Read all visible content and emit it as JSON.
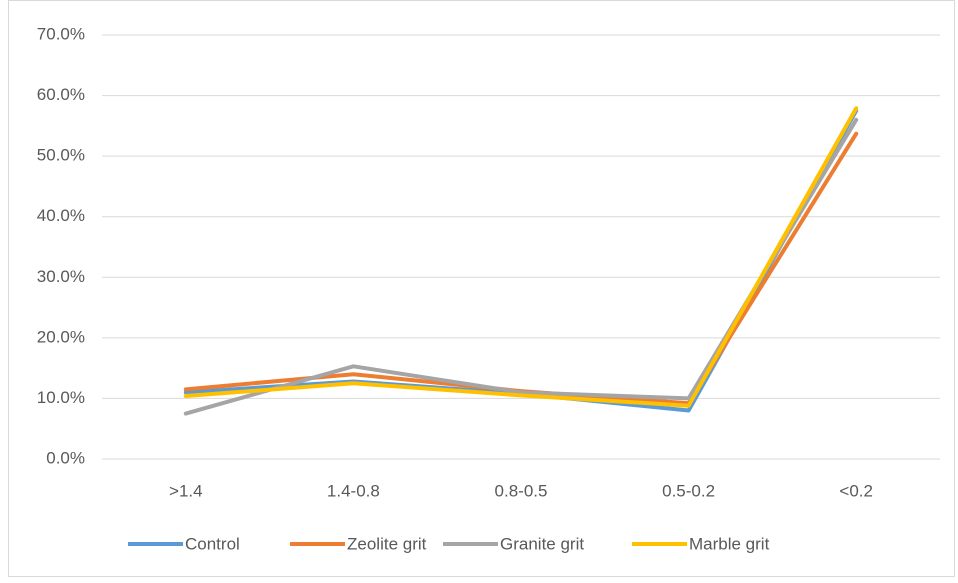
{
  "chart_data": {
    "type": "line",
    "categories": [
      ">1.4",
      "1.4-0.8",
      "0.8-0.5",
      "0.5-0.2",
      "<0.2"
    ],
    "series": [
      {
        "name": "Control",
        "color": "#5b9bd5",
        "values": [
          11.0,
          12.8,
          10.8,
          8.0,
          57.5
        ]
      },
      {
        "name": "Zeolite grit",
        "color": "#ed7d31",
        "values": [
          11.5,
          14.0,
          11.2,
          9.2,
          53.7
        ]
      },
      {
        "name": "Granite grit",
        "color": "#a5a5a5",
        "values": [
          7.5,
          15.3,
          11.0,
          10.0,
          56.0
        ]
      },
      {
        "name": "Marble grit",
        "color": "#ffc000",
        "values": [
          10.4,
          12.5,
          10.5,
          8.8,
          57.9
        ]
      }
    ],
    "ylim": [
      0,
      70
    ],
    "yticks": [
      {
        "value": 0,
        "label": "0.0%"
      },
      {
        "value": 10,
        "label": "10.0%"
      },
      {
        "value": 20,
        "label": "20.0%"
      },
      {
        "value": 30,
        "label": "30.0%"
      },
      {
        "value": 40,
        "label": "40.0%"
      },
      {
        "value": 50,
        "label": "50.0%"
      },
      {
        "value": 60,
        "label": "60.0%"
      },
      {
        "value": 70,
        "label": "70.0%"
      }
    ],
    "grid": true,
    "legend": "bottom"
  }
}
